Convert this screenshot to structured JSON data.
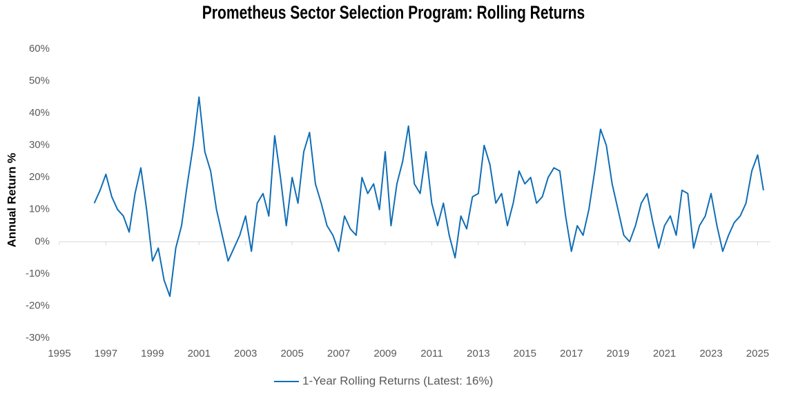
{
  "chart_data": {
    "type": "line",
    "title": "Prometheus Sector Selection Program: Rolling Returns",
    "y_label": "Annual Return %",
    "x": [
      1996.5,
      1996.75,
      1997,
      1997.25,
      1997.5,
      1997.75,
      1998,
      1998.25,
      1998.5,
      1998.75,
      1999,
      1999.25,
      1999.5,
      1999.75,
      2000,
      2000.25,
      2000.5,
      2000.75,
      2001,
      2001.25,
      2001.5,
      2001.75,
      2002,
      2002.25,
      2002.5,
      2002.75,
      2003,
      2003.25,
      2003.5,
      2003.75,
      2004,
      2004.25,
      2004.5,
      2004.75,
      2005,
      2005.25,
      2005.5,
      2005.75,
      2006,
      2006.25,
      2006.5,
      2006.75,
      2007,
      2007.25,
      2007.5,
      2007.75,
      2008,
      2008.25,
      2008.5,
      2008.75,
      2009,
      2009.25,
      2009.5,
      2009.75,
      2010,
      2010.25,
      2010.5,
      2010.75,
      2011,
      2011.25,
      2011.5,
      2011.75,
      2012,
      2012.25,
      2012.5,
      2012.75,
      2013,
      2013.25,
      2013.5,
      2013.75,
      2014,
      2014.25,
      2014.5,
      2014.75,
      2015,
      2015.25,
      2015.5,
      2015.75,
      2016,
      2016.25,
      2016.5,
      2016.75,
      2017,
      2017.25,
      2017.5,
      2017.75,
      2018,
      2018.25,
      2018.5,
      2018.75,
      2019,
      2019.25,
      2019.5,
      2019.75,
      2020,
      2020.25,
      2020.5,
      2020.75,
      2021,
      2021.25,
      2021.5,
      2021.75,
      2022,
      2022.25,
      2022.5,
      2022.75,
      2023,
      2023.25,
      2023.5,
      2023.75,
      2024,
      2024.25,
      2024.5,
      2024.75,
      2025,
      2025.25
    ],
    "series": [
      {
        "name": "1-Year Rolling Returns (Latest: 16%)",
        "color": "#0f6db5",
        "values": [
          12,
          16,
          21,
          14,
          10,
          8,
          3,
          15,
          23,
          10,
          -6,
          -2,
          -12,
          -17,
          -2,
          5,
          18,
          30,
          45,
          28,
          22,
          10,
          2,
          -6,
          -2,
          2,
          8,
          -3,
          12,
          15,
          8,
          33,
          20,
          5,
          20,
          12,
          28,
          34,
          18,
          12,
          5,
          2,
          -3,
          8,
          4,
          2,
          20,
          15,
          18,
          10,
          28,
          5,
          18,
          25,
          36,
          18,
          15,
          28,
          12,
          5,
          12,
          2,
          -5,
          8,
          4,
          14,
          15,
          30,
          24,
          12,
          15,
          5,
          12,
          22,
          18,
          20,
          12,
          14,
          20,
          23,
          22,
          8,
          -3,
          5,
          2,
          10,
          22,
          35,
          30,
          18,
          10,
          2,
          0,
          5,
          12,
          15,
          6,
          -2,
          5,
          8,
          2,
          16,
          15,
          -2,
          5,
          8,
          15,
          5,
          -3,
          2,
          6,
          8,
          12,
          22,
          27,
          16
        ]
      }
    ],
    "xlim": [
      1995,
      2025.55
    ],
    "xticks": [
      1995,
      1997,
      1999,
      2001,
      2003,
      2005,
      2007,
      2009,
      2011,
      2013,
      2015,
      2017,
      2019,
      2021,
      2023,
      2025
    ],
    "ylim": [
      -30,
      60
    ],
    "yticks": [
      {
        "value": -30,
        "label": "-30%"
      },
      {
        "value": -20,
        "label": "-20%"
      },
      {
        "value": -10,
        "label": "-10%"
      },
      {
        "value": 0,
        "label": "0%"
      },
      {
        "value": 10,
        "label": "10%"
      },
      {
        "value": 20,
        "label": "20%"
      },
      {
        "value": 30,
        "label": "30%"
      },
      {
        "value": 40,
        "label": "40%"
      },
      {
        "value": 50,
        "label": "50%"
      },
      {
        "value": 60,
        "label": "60%"
      }
    ],
    "grid": false,
    "legend": "bottom"
  }
}
